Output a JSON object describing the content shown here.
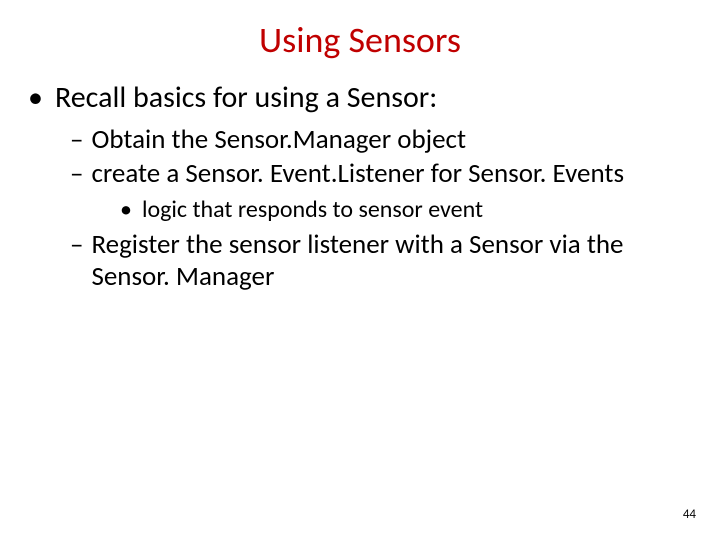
{
  "title": "Using Sensors",
  "page_number": "44",
  "colors": {
    "title": "#c00000",
    "text": "#000000",
    "background": "#ffffff"
  },
  "bullets": {
    "l1_1": "Recall basics for using a Sensor:",
    "l2_1_a": "Obtain the ",
    "l2_1_b": "Sensor.Manager",
    "l2_1_c": " object",
    "l2_2_a": "create a ",
    "l2_2_b": "Sensor. Event.Listener",
    "l2_2_c": " for ",
    "l2_2_d": "Sensor. Events",
    "l3_1": "logic that responds to sensor event",
    "l2_3_a": "Register the sensor listener with a ",
    "l2_3_b": "Sensor",
    "l2_3_c": " via the Sensor. Manager"
  },
  "markers": {
    "l1": "•",
    "l2": "–",
    "l3": "•"
  },
  "typography": {
    "title_fontsize": 36,
    "l1_fontsize": 30,
    "l2_fontsize": 27,
    "l3_fontsize": 24,
    "page_number_fontsize": 13,
    "font_family": "Calibri"
  }
}
